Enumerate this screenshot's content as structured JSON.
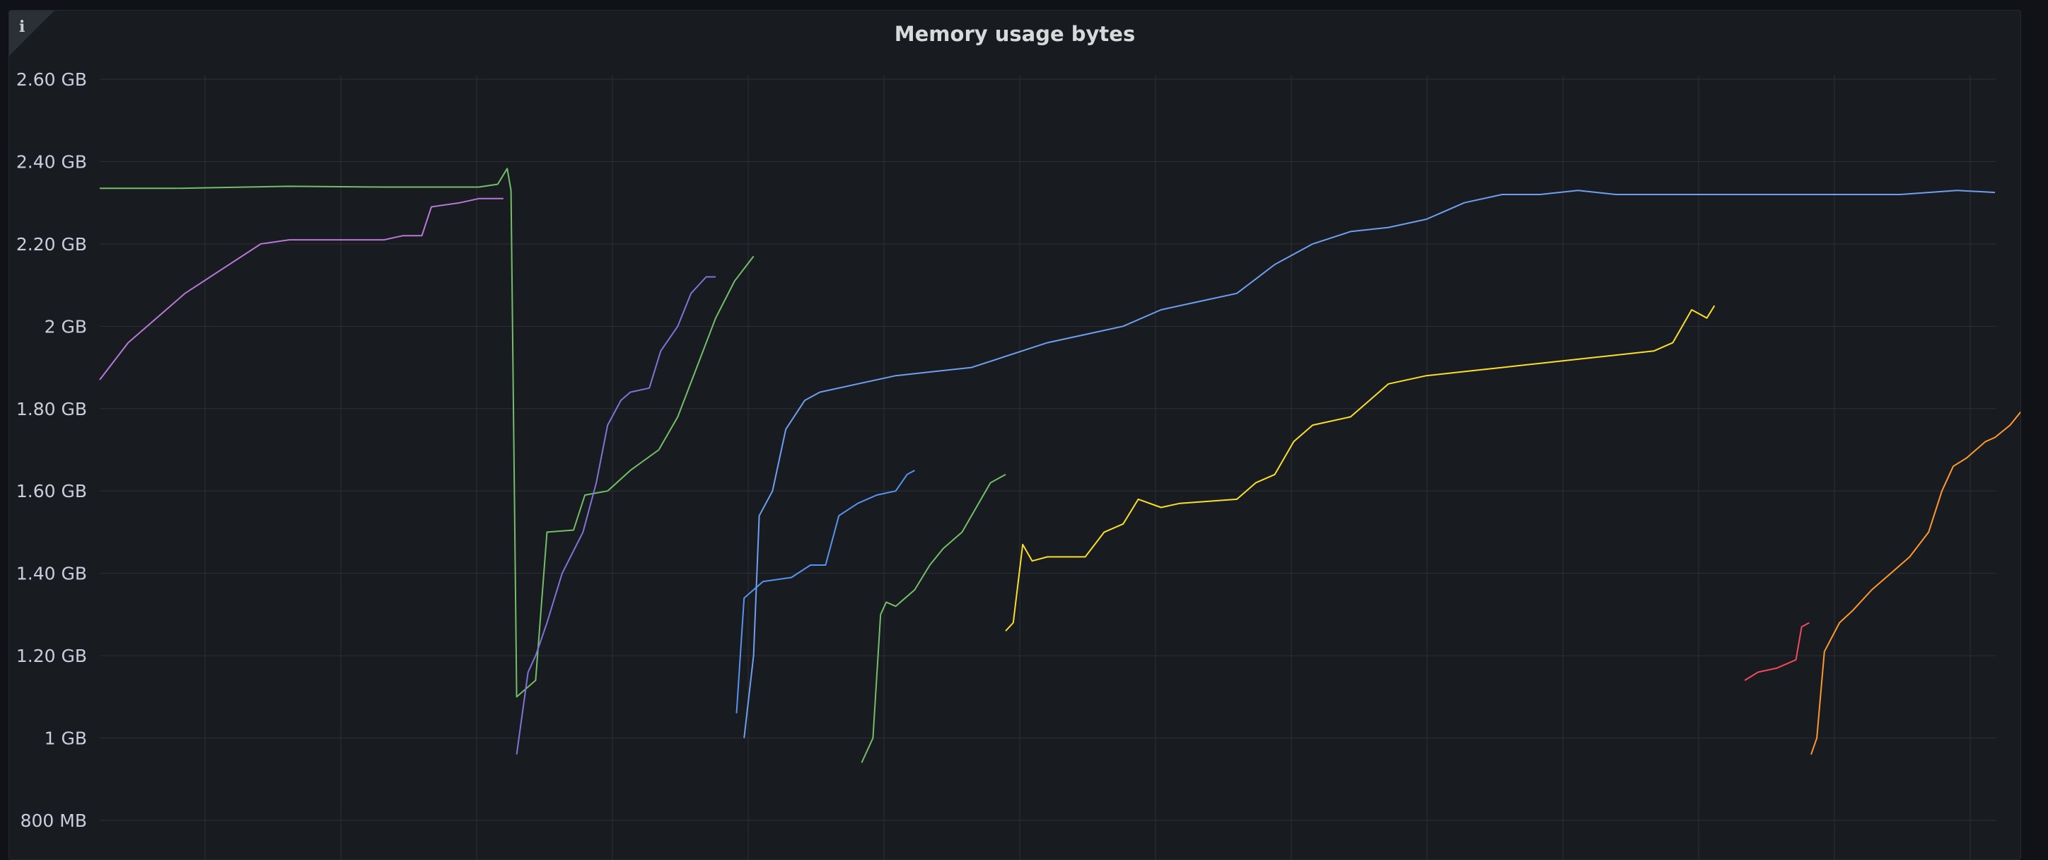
{
  "panel": {
    "title": "Memory usage bytes",
    "info_icon": "info-icon"
  },
  "colors": {
    "background": "#181b1f",
    "grid": "#2c2f36",
    "axis_text": "#ccccdc"
  },
  "chart_data": {
    "type": "line",
    "title": "Memory usage bytes",
    "xlabel": "",
    "ylabel": "",
    "xlim": [
      0,
      1000
    ],
    "ylim": [
      800,
      2600
    ],
    "y_unit": "MB",
    "y_ticks": [
      {
        "value": 2600,
        "label": "2.60 GB"
      },
      {
        "value": 2400,
        "label": "2.40 GB"
      },
      {
        "value": 2200,
        "label": "2.20 GB"
      },
      {
        "value": 2000,
        "label": "2 GB"
      },
      {
        "value": 1800,
        "label": "1.80 GB"
      },
      {
        "value": 1600,
        "label": "1.60 GB"
      },
      {
        "value": 1400,
        "label": "1.40 GB"
      },
      {
        "value": 1200,
        "label": "1.20 GB"
      },
      {
        "value": 1000,
        "label": "1 GB"
      },
      {
        "value": 800,
        "label": "800 MB"
      }
    ],
    "grid": true,
    "legend": "none",
    "series": [
      {
        "color": "#73bf69",
        "points": [
          [
            0,
            2335
          ],
          [
            40,
            2335
          ],
          [
            100,
            2340
          ],
          [
            150,
            2338
          ],
          [
            200,
            2338
          ],
          [
            210,
            2345
          ],
          [
            215,
            2383
          ],
          [
            217,
            2330
          ],
          [
            220,
            1100
          ],
          [
            230,
            1140
          ],
          [
            236,
            1500
          ],
          [
            250,
            1505
          ],
          [
            256,
            1590
          ],
          [
            268,
            1600
          ],
          [
            280,
            1650
          ],
          [
            295,
            1700
          ],
          [
            305,
            1780
          ],
          [
            315,
            1900
          ],
          [
            325,
            2020
          ],
          [
            335,
            2110
          ],
          [
            345,
            2170
          ]
        ]
      },
      {
        "color": "#b877d9",
        "points": [
          [
            0,
            1870
          ],
          [
            15,
            1960
          ],
          [
            30,
            2020
          ],
          [
            45,
            2080
          ],
          [
            65,
            2140
          ],
          [
            85,
            2200
          ],
          [
            100,
            2210
          ],
          [
            150,
            2210
          ],
          [
            160,
            2220
          ],
          [
            170,
            2220
          ],
          [
            175,
            2290
          ],
          [
            190,
            2300
          ],
          [
            200,
            2310
          ],
          [
            213,
            2310
          ]
        ]
      },
      {
        "color": "#8073d9",
        "points": [
          [
            220,
            960
          ],
          [
            226,
            1160
          ],
          [
            230,
            1200
          ],
          [
            236,
            1280
          ],
          [
            244,
            1400
          ],
          [
            255,
            1500
          ],
          [
            262,
            1620
          ],
          [
            268,
            1760
          ],
          [
            275,
            1820
          ],
          [
            280,
            1840
          ],
          [
            290,
            1850
          ],
          [
            296,
            1940
          ],
          [
            305,
            2000
          ],
          [
            312,
            2080
          ],
          [
            320,
            2120
          ],
          [
            325,
            2120
          ]
        ]
      },
      {
        "color": "#5794f2",
        "points": [
          [
            336,
            1060
          ],
          [
            340,
            1340
          ],
          [
            350,
            1380
          ],
          [
            365,
            1390
          ],
          [
            375,
            1420
          ],
          [
            383,
            1420
          ],
          [
            390,
            1540
          ],
          [
            400,
            1570
          ],
          [
            410,
            1590
          ],
          [
            420,
            1600
          ],
          [
            426,
            1640
          ],
          [
            430,
            1650
          ]
        ]
      },
      {
        "color": "#6e9ff0",
        "points": [
          [
            340,
            1000
          ],
          [
            345,
            1200
          ],
          [
            348,
            1540
          ],
          [
            355,
            1600
          ],
          [
            362,
            1750
          ],
          [
            372,
            1820
          ],
          [
            380,
            1840
          ],
          [
            400,
            1860
          ],
          [
            420,
            1880
          ],
          [
            440,
            1890
          ],
          [
            460,
            1900
          ],
          [
            480,
            1930
          ],
          [
            500,
            1960
          ],
          [
            520,
            1980
          ],
          [
            540,
            2000
          ],
          [
            560,
            2040
          ],
          [
            580,
            2060
          ],
          [
            600,
            2080
          ],
          [
            620,
            2150
          ],
          [
            640,
            2200
          ],
          [
            660,
            2230
          ],
          [
            680,
            2240
          ],
          [
            700,
            2260
          ],
          [
            720,
            2300
          ],
          [
            740,
            2320
          ],
          [
            760,
            2320
          ],
          [
            780,
            2330
          ],
          [
            800,
            2320
          ],
          [
            850,
            2320
          ],
          [
            900,
            2320
          ],
          [
            950,
            2320
          ],
          [
            980,
            2330
          ],
          [
            1000,
            2325
          ]
        ]
      },
      {
        "color": "#73bf69",
        "points": [
          [
            402,
            940
          ],
          [
            408,
            1000
          ],
          [
            412,
            1300
          ],
          [
            415,
            1330
          ],
          [
            420,
            1320
          ],
          [
            430,
            1360
          ],
          [
            438,
            1420
          ],
          [
            445,
            1460
          ],
          [
            455,
            1500
          ],
          [
            465,
            1580
          ],
          [
            470,
            1620
          ],
          [
            478,
            1640
          ]
        ]
      },
      {
        "color": "#fade2a",
        "points": [
          [
            478,
            1260
          ],
          [
            482,
            1280
          ],
          [
            487,
            1470
          ],
          [
            492,
            1430
          ],
          [
            500,
            1440
          ],
          [
            520,
            1440
          ],
          [
            530,
            1500
          ],
          [
            540,
            1520
          ],
          [
            548,
            1580
          ],
          [
            560,
            1560
          ],
          [
            570,
            1570
          ],
          [
            600,
            1580
          ],
          [
            610,
            1620
          ],
          [
            620,
            1640
          ],
          [
            630,
            1720
          ],
          [
            640,
            1760
          ],
          [
            660,
            1780
          ],
          [
            670,
            1820
          ],
          [
            680,
            1860
          ],
          [
            700,
            1880
          ],
          [
            720,
            1890
          ],
          [
            740,
            1900
          ],
          [
            760,
            1910
          ],
          [
            780,
            1920
          ],
          [
            800,
            1930
          ],
          [
            820,
            1940
          ],
          [
            830,
            1960
          ],
          [
            840,
            2040
          ],
          [
            848,
            2020
          ],
          [
            852,
            2050
          ]
        ]
      },
      {
        "color": "#f2495c",
        "points": [
          [
            868,
            1140
          ],
          [
            875,
            1160
          ],
          [
            885,
            1170
          ],
          [
            895,
            1190
          ],
          [
            898,
            1270
          ],
          [
            902,
            1280
          ]
        ]
      },
      {
        "color": "#ff9830",
        "points": [
          [
            903,
            960
          ],
          [
            906,
            1000
          ],
          [
            910,
            1210
          ],
          [
            918,
            1280
          ],
          [
            925,
            1310
          ],
          [
            935,
            1360
          ],
          [
            945,
            1400
          ],
          [
            955,
            1440
          ],
          [
            965,
            1500
          ],
          [
            972,
            1600
          ],
          [
            978,
            1660
          ],
          [
            985,
            1680
          ],
          [
            995,
            1720
          ],
          [
            1000,
            1730
          ],
          [
            1008,
            1760
          ],
          [
            1015,
            1800
          ]
        ]
      }
    ]
  }
}
